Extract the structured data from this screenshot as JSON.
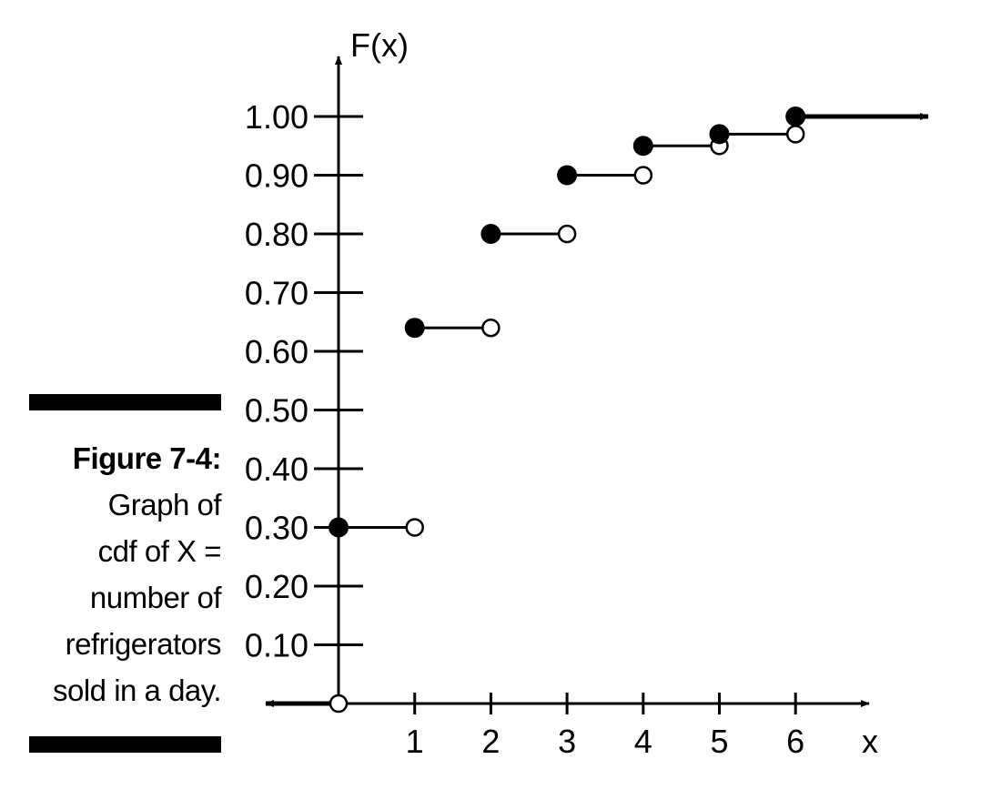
{
  "caption": {
    "label": "Figure 7-4:",
    "lines": [
      "Graph of",
      "cdf of X =",
      "number of",
      "refrigerators",
      "sold in a day."
    ]
  },
  "chart_data": {
    "type": "step",
    "title": "",
    "xlabel": "x",
    "ylabel": "F(x)",
    "xlim": [
      0,
      7
    ],
    "ylim": [
      0,
      1
    ],
    "x_ticks": [
      1,
      2,
      3,
      4,
      5,
      6
    ],
    "x_tick_labels": [
      "1",
      "2",
      "3",
      "4",
      "5",
      "6"
    ],
    "y_ticks": [
      0.1,
      0.2,
      0.3,
      0.4,
      0.5,
      0.6,
      0.7,
      0.8,
      0.9,
      1.0
    ],
    "y_tick_labels": [
      "0.10",
      "0.20",
      "0.30",
      "0.40",
      "0.50",
      "0.60",
      "0.70",
      "0.80",
      "0.90",
      "1.00"
    ],
    "steps": [
      {
        "x_start": 0,
        "x_end": 1,
        "y": 0.3
      },
      {
        "x_start": 1,
        "x_end": 2,
        "y": 0.64
      },
      {
        "x_start": 2,
        "x_end": 3,
        "y": 0.8
      },
      {
        "x_start": 3,
        "x_end": 4,
        "y": 0.9
      },
      {
        "x_start": 4,
        "x_end": 5,
        "y": 0.95
      },
      {
        "x_start": 5,
        "x_end": 6,
        "y": 0.97
      },
      {
        "x_start": 6,
        "x_end": null,
        "y": 1.0
      }
    ],
    "left_tail": {
      "y": 0,
      "open_point_x": 0
    },
    "grid": false,
    "legend": "none",
    "colors": {
      "ink": "#000000",
      "paper": "#ffffff"
    }
  }
}
